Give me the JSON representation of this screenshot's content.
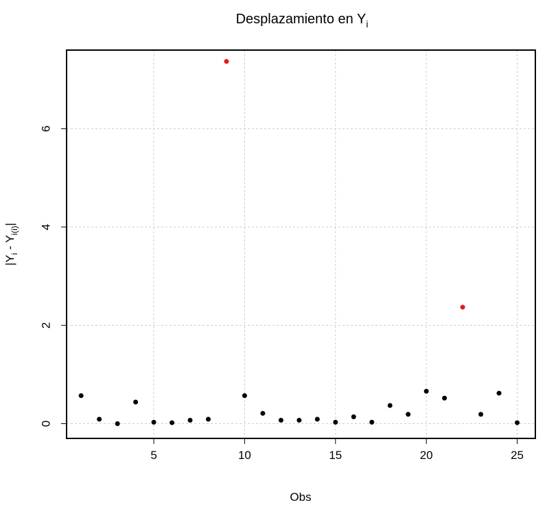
{
  "chart_data": {
    "type": "scatter",
    "title": "Desplazamiento en Y",
    "title_subscript": "i",
    "xlabel": "Obs",
    "ylabel": {
      "prefix": "|Y",
      "sub1": "i",
      "middle": " - Y",
      "sub2": "i(i)",
      "suffix": "|"
    },
    "xlim": [
      0.2,
      26
    ],
    "ylim": [
      -0.3,
      7.6
    ],
    "xticks": [
      5,
      10,
      15,
      20,
      25
    ],
    "yticks": [
      0,
      2,
      4,
      6
    ],
    "grid": true,
    "colors": {
      "point": "#000000",
      "highlight": "#e31a1c",
      "grid": "#cccccc",
      "axis": "#000000"
    },
    "highlighted_x": [
      9,
      22
    ],
    "x": [
      1,
      2,
      3,
      4,
      5,
      6,
      7,
      8,
      9,
      10,
      11,
      12,
      13,
      14,
      15,
      16,
      17,
      18,
      19,
      20,
      21,
      22,
      23,
      24,
      25
    ],
    "y": [
      0.57,
      0.09,
      0.0,
      0.44,
      0.03,
      0.02,
      0.07,
      0.09,
      7.37,
      0.57,
      0.21,
      0.07,
      0.07,
      0.09,
      0.03,
      0.14,
      0.03,
      0.37,
      0.19,
      0.66,
      0.52,
      2.37,
      0.19,
      0.62,
      0.02
    ]
  }
}
